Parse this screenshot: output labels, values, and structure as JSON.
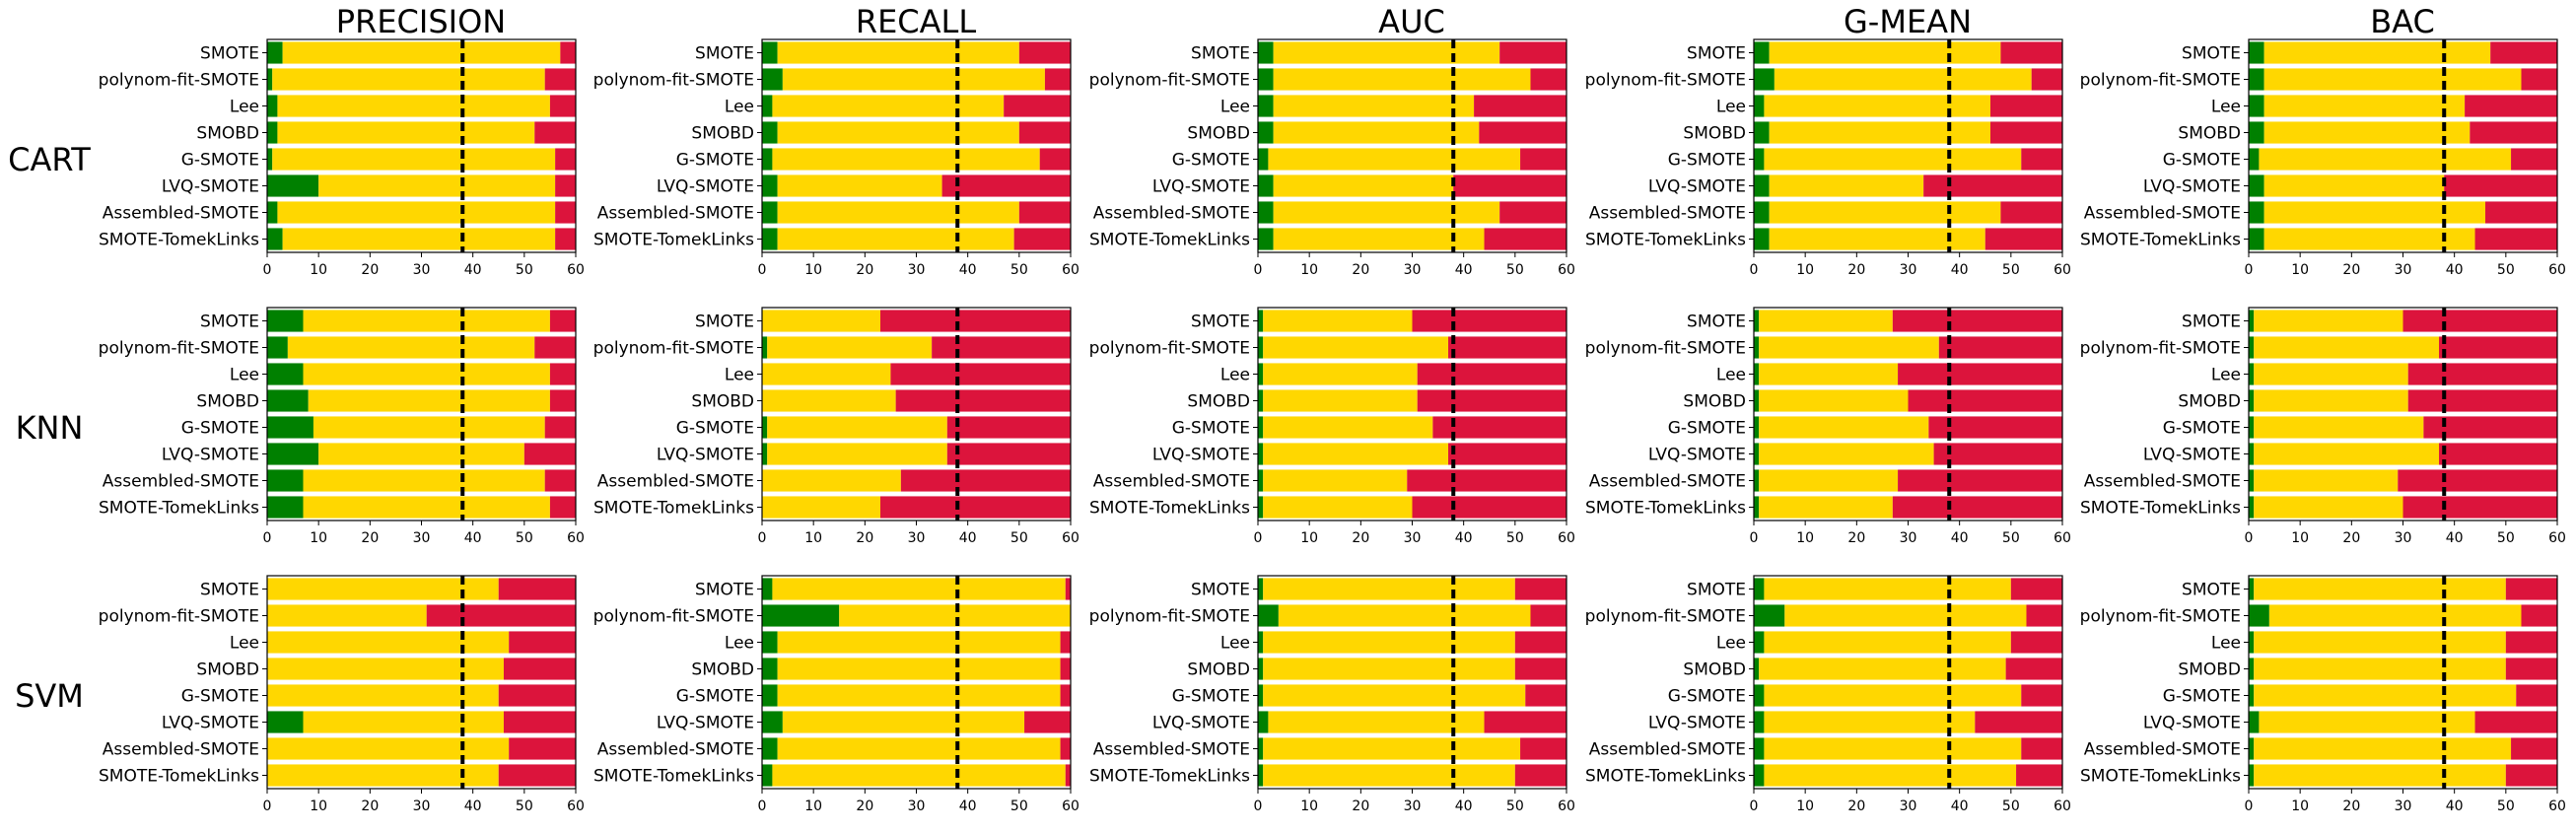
{
  "colors": {
    "win": "#008000",
    "tie": "#ffd700",
    "loss": "#dc143c",
    "reference_line": "#000000"
  },
  "columns": [
    "PRECISION",
    "RECALL",
    "AUC",
    "G-MEAN",
    "BAC"
  ],
  "rows": [
    "CART",
    "KNN",
    "SVM"
  ],
  "chart_data": {
    "type": "bar",
    "orientation": "horizontal",
    "stacked": true,
    "categories": [
      "SMOTE",
      "polynom-fit-SMOTE",
      "Lee",
      "SMOBD",
      "G-SMOTE",
      "LVQ-SMOTE",
      "Assembled-SMOTE",
      "SMOTE-TomekLinks"
    ],
    "xlim": [
      0,
      60
    ],
    "xticks": [
      "0",
      "10",
      "20",
      "30",
      "40",
      "50",
      "60"
    ],
    "reference_line_x": 38,
    "grid": false,
    "segments": [
      "green",
      "yellow",
      "red"
    ],
    "panels": [
      {
        "row": "CART",
        "metric": "PRECISION",
        "green": [
          3,
          1,
          2,
          2,
          1,
          10,
          2,
          3
        ],
        "yellow": [
          54,
          53,
          53,
          50,
          55,
          46,
          54,
          53
        ],
        "red": [
          3,
          6,
          5,
          8,
          4,
          4,
          4,
          4
        ]
      },
      {
        "row": "CART",
        "metric": "RECALL",
        "green": [
          3,
          4,
          2,
          3,
          2,
          3,
          3,
          3
        ],
        "yellow": [
          47,
          51,
          45,
          47,
          52,
          32,
          47,
          46
        ],
        "red": [
          10,
          5,
          13,
          10,
          6,
          25,
          10,
          11
        ]
      },
      {
        "row": "CART",
        "metric": "AUC",
        "green": [
          3,
          3,
          3,
          3,
          2,
          3,
          3,
          3
        ],
        "yellow": [
          44,
          50,
          39,
          40,
          49,
          35,
          44,
          41
        ],
        "red": [
          13,
          7,
          18,
          17,
          9,
          22,
          13,
          16
        ]
      },
      {
        "row": "CART",
        "metric": "G-MEAN",
        "green": [
          3,
          4,
          2,
          3,
          2,
          3,
          3,
          3
        ],
        "yellow": [
          45,
          50,
          44,
          43,
          50,
          30,
          45,
          42
        ],
        "red": [
          12,
          6,
          14,
          14,
          8,
          27,
          12,
          15
        ]
      },
      {
        "row": "CART",
        "metric": "BAC",
        "green": [
          3,
          3,
          3,
          3,
          2,
          3,
          3,
          3
        ],
        "yellow": [
          44,
          50,
          39,
          40,
          49,
          35,
          43,
          41
        ],
        "red": [
          13,
          7,
          18,
          17,
          9,
          22,
          14,
          16
        ]
      },
      {
        "row": "KNN",
        "metric": "PRECISION",
        "green": [
          7,
          4,
          7,
          8,
          9,
          10,
          7,
          7
        ],
        "yellow": [
          48,
          48,
          48,
          47,
          45,
          40,
          47,
          48
        ],
        "red": [
          5,
          8,
          5,
          5,
          6,
          10,
          6,
          5
        ]
      },
      {
        "row": "KNN",
        "metric": "RECALL",
        "green": [
          0,
          1,
          0,
          0,
          1,
          1,
          0,
          0
        ],
        "yellow": [
          23,
          32,
          25,
          26,
          35,
          35,
          27,
          23
        ],
        "red": [
          37,
          27,
          35,
          34,
          24,
          24,
          33,
          37
        ]
      },
      {
        "row": "KNN",
        "metric": "AUC",
        "green": [
          1,
          1,
          1,
          1,
          1,
          1,
          1,
          1
        ],
        "yellow": [
          29,
          36,
          30,
          30,
          33,
          36,
          28,
          29
        ],
        "red": [
          30,
          23,
          29,
          29,
          26,
          23,
          31,
          30
        ]
      },
      {
        "row": "KNN",
        "metric": "G-MEAN",
        "green": [
          1,
          1,
          1,
          1,
          1,
          1,
          1,
          1
        ],
        "yellow": [
          26,
          35,
          27,
          29,
          33,
          34,
          27,
          26
        ],
        "red": [
          33,
          24,
          32,
          30,
          26,
          25,
          32,
          33
        ]
      },
      {
        "row": "KNN",
        "metric": "BAC",
        "green": [
          1,
          1,
          1,
          1,
          1,
          1,
          1,
          1
        ],
        "yellow": [
          29,
          36,
          30,
          30,
          33,
          36,
          28,
          29
        ],
        "red": [
          30,
          23,
          29,
          29,
          26,
          23,
          31,
          30
        ]
      },
      {
        "row": "SVM",
        "metric": "PRECISION",
        "green": [
          0,
          0,
          0,
          0,
          0,
          7,
          0,
          0
        ],
        "yellow": [
          45,
          31,
          47,
          46,
          45,
          39,
          47,
          45
        ],
        "red": [
          15,
          29,
          13,
          14,
          15,
          14,
          13,
          15
        ]
      },
      {
        "row": "SVM",
        "metric": "RECALL",
        "green": [
          2,
          15,
          3,
          3,
          3,
          4,
          3,
          2
        ],
        "yellow": [
          57,
          45,
          55,
          55,
          55,
          47,
          55,
          57
        ],
        "red": [
          1,
          0,
          2,
          2,
          2,
          9,
          2,
          1
        ]
      },
      {
        "row": "SVM",
        "metric": "AUC",
        "green": [
          1,
          4,
          1,
          1,
          1,
          2,
          1,
          1
        ],
        "yellow": [
          49,
          49,
          49,
          49,
          51,
          42,
          50,
          49
        ],
        "red": [
          10,
          7,
          10,
          10,
          8,
          16,
          9,
          10
        ]
      },
      {
        "row": "SVM",
        "metric": "G-MEAN",
        "green": [
          2,
          6,
          2,
          1,
          2,
          2,
          2,
          2
        ],
        "yellow": [
          48,
          47,
          48,
          48,
          50,
          41,
          50,
          49
        ],
        "red": [
          10,
          7,
          10,
          11,
          8,
          17,
          8,
          9
        ]
      },
      {
        "row": "SVM",
        "metric": "BAC",
        "green": [
          1,
          4,
          1,
          1,
          1,
          2,
          1,
          1
        ],
        "yellow": [
          49,
          49,
          49,
          49,
          51,
          42,
          50,
          49
        ],
        "red": [
          10,
          7,
          10,
          10,
          8,
          16,
          9,
          10
        ]
      }
    ]
  }
}
